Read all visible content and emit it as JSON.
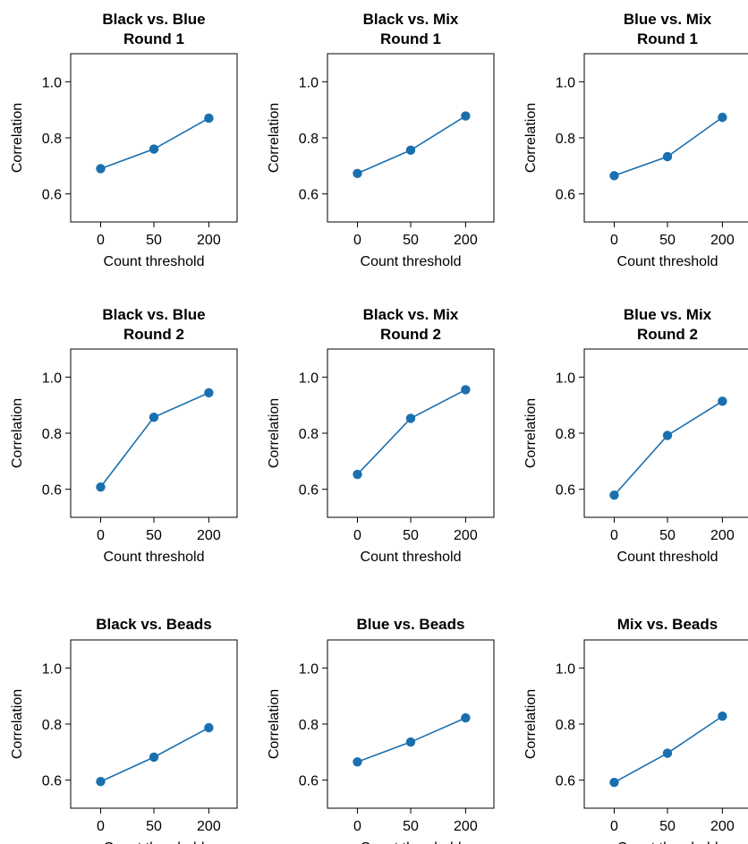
{
  "figure": {
    "xlabel": "Count threshold",
    "ylabel": "Correlation"
  },
  "colors": {
    "series": "#1a6faf",
    "axis": "#000000",
    "background": "#ffffff"
  },
  "chart_data": [
    {
      "type": "line",
      "title": [
        "Black vs. Blue",
        "Round 1"
      ],
      "categories": [
        "0",
        "50",
        "200"
      ],
      "values": [
        0.69,
        0.76,
        0.87
      ],
      "xlabel": "Count threshold",
      "ylabel": "Correlation",
      "ylim": [
        0.5,
        1.1
      ],
      "yticks": [
        "0.6",
        "0.8",
        "1.0"
      ],
      "grid": false
    },
    {
      "type": "line",
      "title": [
        "Black vs. Mix",
        "Round 1"
      ],
      "categories": [
        "0",
        "50",
        "200"
      ],
      "values": [
        0.673,
        0.756,
        0.878
      ],
      "xlabel": "Count threshold",
      "ylabel": "Correlation",
      "ylim": [
        0.5,
        1.1
      ],
      "yticks": [
        "0.6",
        "0.8",
        "1.0"
      ],
      "grid": false
    },
    {
      "type": "line",
      "title": [
        "Blue vs. Mix",
        "Round 1"
      ],
      "categories": [
        "0",
        "50",
        "200"
      ],
      "values": [
        0.665,
        0.733,
        0.873
      ],
      "xlabel": "Count threshold",
      "ylabel": "Correlation",
      "ylim": [
        0.5,
        1.1
      ],
      "yticks": [
        "0.6",
        "0.8",
        "1.0"
      ],
      "grid": false
    },
    {
      "type": "line",
      "title": [
        "Black vs. Blue",
        "Round 2"
      ],
      "categories": [
        "0",
        "50",
        "200"
      ],
      "values": [
        0.608,
        0.857,
        0.944
      ],
      "xlabel": "Count threshold",
      "ylabel": "Correlation",
      "ylim": [
        0.5,
        1.1
      ],
      "yticks": [
        "0.6",
        "0.8",
        "1.0"
      ],
      "grid": false
    },
    {
      "type": "line",
      "title": [
        "Black vs. Mix",
        "Round 2"
      ],
      "categories": [
        "0",
        "50",
        "200"
      ],
      "values": [
        0.653,
        0.853,
        0.955
      ],
      "xlabel": "Count threshold",
      "ylabel": "Correlation",
      "ylim": [
        0.5,
        1.1
      ],
      "yticks": [
        "0.6",
        "0.8",
        "1.0"
      ],
      "grid": false
    },
    {
      "type": "line",
      "title": [
        "Blue vs. Mix",
        "Round 2"
      ],
      "categories": [
        "0",
        "50",
        "200"
      ],
      "values": [
        0.579,
        0.792,
        0.914
      ],
      "xlabel": "Count threshold",
      "ylabel": "Correlation",
      "ylim": [
        0.5,
        1.1
      ],
      "yticks": [
        "0.6",
        "0.8",
        "1.0"
      ],
      "grid": false
    },
    {
      "type": "line",
      "title": [
        "Black vs. Beads"
      ],
      "categories": [
        "0",
        "50",
        "200"
      ],
      "values": [
        0.595,
        0.682,
        0.787
      ],
      "xlabel": "Count threshold",
      "ylabel": "Correlation",
      "ylim": [
        0.5,
        1.1
      ],
      "yticks": [
        "0.6",
        "0.8",
        "1.0"
      ],
      "grid": false
    },
    {
      "type": "line",
      "title": [
        "Blue vs. Beads"
      ],
      "categories": [
        "0",
        "50",
        "200"
      ],
      "values": [
        0.665,
        0.736,
        0.822
      ],
      "xlabel": "Count threshold",
      "ylabel": "Correlation",
      "ylim": [
        0.5,
        1.1
      ],
      "yticks": [
        "0.6",
        "0.8",
        "1.0"
      ],
      "grid": false
    },
    {
      "type": "line",
      "title": [
        "Mix vs. Beads"
      ],
      "categories": [
        "0",
        "50",
        "200"
      ],
      "values": [
        0.592,
        0.696,
        0.828
      ],
      "xlabel": "Count threshold",
      "ylabel": "Correlation",
      "ylim": [
        0.5,
        1.1
      ],
      "yticks": [
        "0.6",
        "0.8",
        "1.0"
      ],
      "grid": false
    }
  ]
}
